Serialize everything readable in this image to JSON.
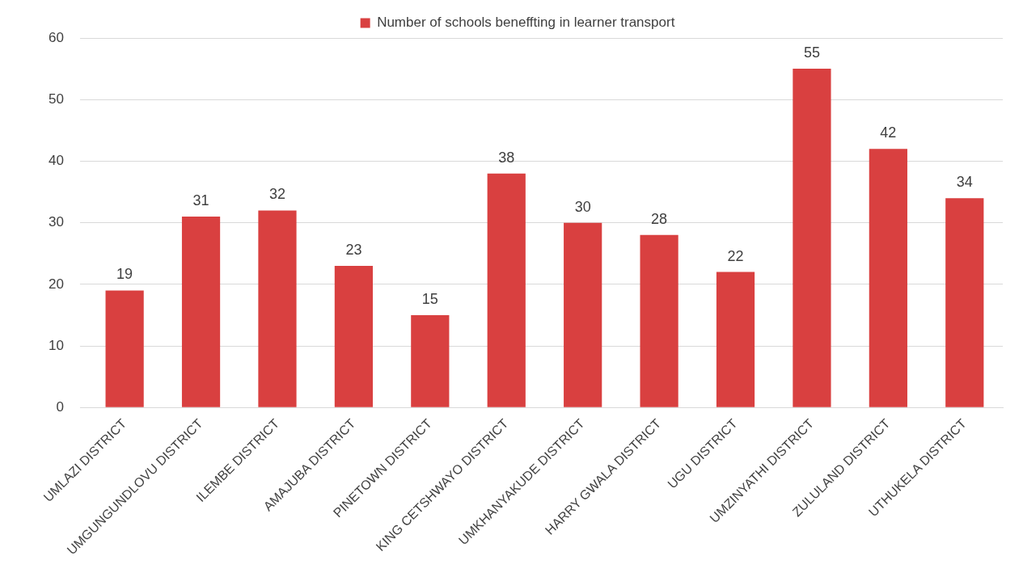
{
  "chart_data": {
    "type": "bar",
    "categories": [
      "UMLAZI DISTRICT",
      "UMGUNGUNDLOVU DISTRICT",
      "ILEMBE DISTRICT",
      "AMAJUBA DISTRICT",
      "PINETOWN DISTRICT",
      "KING CETSHWAYO DISTRICT",
      "UMKHANYAKUDE DISTRICT",
      "HARRY GWALA DISTRICT",
      "UGU DISTRICT",
      "UMZINYATHI DISTRICT",
      "ZULULAND DISTRICT",
      "UTHUKELA DISTRICT"
    ],
    "series": [
      {
        "name": "Number of schools beneffting in learner transport",
        "color": "#d94040",
        "values": [
          19,
          31,
          32,
          23,
          15,
          38,
          30,
          28,
          22,
          55,
          42,
          34
        ]
      }
    ],
    "ylim": [
      0,
      60
    ],
    "yticks": [
      0,
      10,
      20,
      30,
      40,
      50,
      60
    ],
    "grid": "y",
    "legend": "top",
    "data_labels": true
  }
}
